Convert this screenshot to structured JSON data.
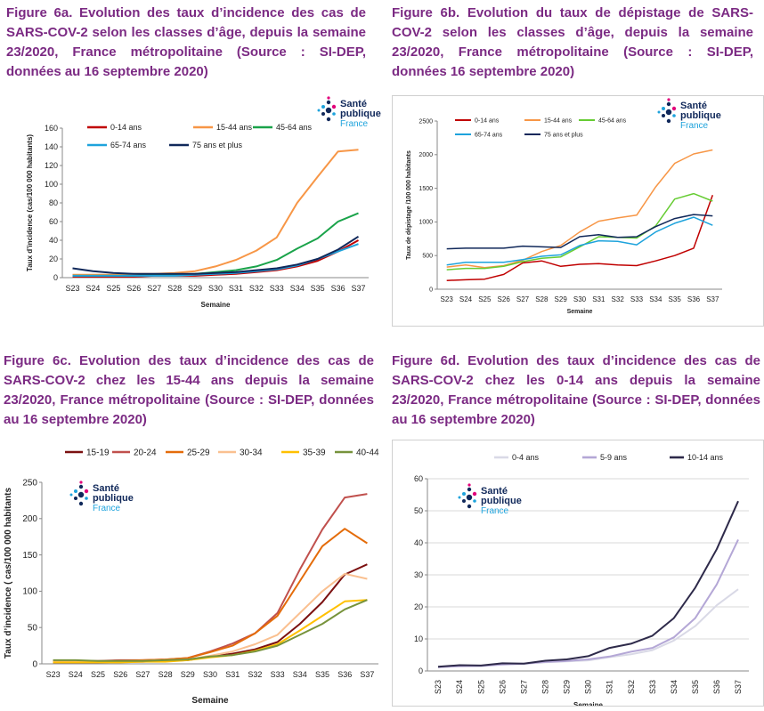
{
  "captions": {
    "fig6a": "Figure 6a. Evolution des taux d’incidence des cas de SARS-COV-2 selon les classes d’âge, depuis la semaine 23/2020, France métropolitaine (Source : SI-DEP, données au 16 septembre 2020)",
    "fig6b": "Figure 6b. Evolution du taux de dépistage de SARS-COV-2 selon les classes d’âge, depuis la semaine 23/2020, France métropolitaine (Source : SI-DEP, données 16 septembre 2020)",
    "fig6c": "Figure 6c. Evolution des taux d’incidence des cas de SARS-COV-2 chez les 15-44 ans depuis la semaine 23/2020, France métropolitaine (Source : SI-DEP, données au 16 septembre 2020)",
    "fig6d": "Figure 6d. Evolution des taux d’incidence des cas de SARS-COV-2 chez les 0-14 ans depuis la semaine 23/2020, France métropolitaine (Source : SI-DEP, données au 16 septembre 2020)"
  },
  "logo": {
    "line1": "Santé",
    "line2": "publique",
    "line3": "France"
  },
  "chart_data": [
    {
      "id": "fig6a",
      "type": "line",
      "title": "",
      "xlabel": "Semaine",
      "ylabel": "Taux d’incidence (cas/100 000 habitants)",
      "ylim": [
        0,
        160
      ],
      "yticks": [
        0,
        20,
        40,
        60,
        80,
        100,
        120,
        140,
        160
      ],
      "categories": [
        "S23",
        "S24",
        "S25",
        "S26",
        "S27",
        "S28",
        "S29",
        "S30",
        "S31",
        "S32",
        "S33",
        "S34",
        "S35",
        "S36",
        "S37"
      ],
      "legend_position": "top",
      "series": [
        {
          "name": "0-14 ans",
          "color": "#c00000",
          "values": [
            1,
            1,
            1,
            1,
            2,
            2,
            2,
            3,
            4,
            6,
            8,
            12,
            18,
            28,
            40
          ]
        },
        {
          "name": "15-44 ans",
          "color": "#f79646",
          "values": [
            3,
            3,
            3,
            4,
            4,
            5,
            7,
            12,
            19,
            29,
            43,
            80,
            108,
            135,
            137
          ]
        },
        {
          "name": "45-64 ans",
          "color": "#1aa34a",
          "values": [
            2,
            2,
            2,
            2,
            3,
            3,
            4,
            6,
            8,
            12,
            19,
            31,
            42,
            60,
            69
          ]
        },
        {
          "name": "65-74 ans",
          "color": "#1ea3dc",
          "values": [
            2,
            2,
            2,
            2,
            2,
            2,
            3,
            4,
            5,
            7,
            9,
            13,
            20,
            28,
            36
          ]
        },
        {
          "name": "75 ans et plus",
          "color": "#10285a",
          "values": [
            10,
            7,
            5,
            4,
            4,
            4,
            4,
            5,
            6,
            8,
            10,
            14,
            20,
            30,
            44
          ]
        }
      ]
    },
    {
      "id": "fig6b",
      "type": "line",
      "title": "",
      "xlabel": "Semaine",
      "ylabel": "Taux de dépistage /100 000 habitants",
      "ylim": [
        0,
        2500
      ],
      "yticks": [
        0,
        500,
        1000,
        1500,
        2000,
        2500
      ],
      "categories": [
        "S23",
        "S24",
        "S25",
        "S26",
        "S27",
        "S28",
        "S29",
        "S30",
        "S31",
        "S32",
        "S33",
        "S34",
        "S35",
        "S36",
        "S37"
      ],
      "legend_position": "top",
      "series": [
        {
          "name": "0-14 ans",
          "color": "#c00000",
          "values": [
            130,
            140,
            150,
            220,
            390,
            420,
            340,
            370,
            380,
            360,
            350,
            420,
            500,
            610,
            1400
          ]
        },
        {
          "name": "15-44 ans",
          "color": "#f79646",
          "values": [
            330,
            360,
            320,
            350,
            430,
            560,
            650,
            850,
            1010,
            1060,
            1100,
            1520,
            1870,
            2010,
            2070
          ]
        },
        {
          "name": "45-64 ans",
          "color": "#66cc33",
          "values": [
            290,
            310,
            310,
            340,
            410,
            460,
            480,
            630,
            780,
            770,
            760,
            940,
            1340,
            1420,
            1310
          ]
        },
        {
          "name": "65-74 ans",
          "color": "#1ea3dc",
          "values": [
            360,
            400,
            400,
            400,
            440,
            490,
            510,
            650,
            720,
            710,
            660,
            850,
            980,
            1070,
            950
          ]
        },
        {
          "name": "75 ans et plus",
          "color": "#10285a",
          "values": [
            600,
            610,
            610,
            610,
            640,
            630,
            620,
            780,
            810,
            770,
            780,
            930,
            1050,
            1110,
            1090
          ]
        }
      ]
    },
    {
      "id": "fig6c",
      "type": "line",
      "title": "",
      "xlabel": "Semaine",
      "ylabel": "Taux d’incidence ( cas/100 000 habitants",
      "ylim": [
        0,
        250
      ],
      "yticks": [
        0,
        50,
        100,
        150,
        200,
        250
      ],
      "categories": [
        "S23",
        "S24",
        "S25",
        "S26",
        "S27",
        "S28",
        "S29",
        "S30",
        "S31",
        "S32",
        "S33",
        "S34",
        "S35",
        "S36",
        "S37"
      ],
      "legend_position": "top",
      "series": [
        {
          "name": "15-19",
          "color": "#7b1010",
          "values": [
            2,
            2,
            2,
            3,
            3,
            4,
            5,
            10,
            14,
            20,
            30,
            55,
            85,
            123,
            137
          ]
        },
        {
          "name": "20-24",
          "color": "#c0504d",
          "values": [
            4,
            4,
            4,
            5,
            5,
            6,
            8,
            17,
            28,
            42,
            70,
            130,
            185,
            229,
            234
          ]
        },
        {
          "name": "25-29",
          "color": "#e46c0a",
          "values": [
            3,
            3,
            3,
            4,
            5,
            6,
            8,
            16,
            25,
            42,
            66,
            114,
            162,
            186,
            166
          ]
        },
        {
          "name": "30-34",
          "color": "#fac090",
          "values": [
            3,
            3,
            3,
            3,
            4,
            5,
            6,
            11,
            17,
            27,
            40,
            70,
            100,
            124,
            117
          ]
        },
        {
          "name": "35-39",
          "color": "#ffc000",
          "values": [
            2,
            2,
            2,
            2,
            3,
            3,
            5,
            9,
            12,
            18,
            27,
            46,
            66,
            86,
            88
          ]
        },
        {
          "name": "40-44",
          "color": "#77933c",
          "values": [
            5,
            5,
            4,
            4,
            4,
            5,
            6,
            10,
            12,
            17,
            25,
            40,
            55,
            75,
            88
          ]
        }
      ]
    },
    {
      "id": "fig6d",
      "type": "line",
      "title": "",
      "xlabel": "Semaine",
      "ylabel": "",
      "ylim": [
        0,
        60
      ],
      "yticks": [
        0,
        10,
        20,
        30,
        40,
        50,
        60
      ],
      "categories": [
        "S23",
        "S24",
        "S25",
        "S26",
        "S27",
        "S28",
        "S29",
        "S30",
        "S31",
        "S32",
        "S33",
        "S34",
        "S35",
        "S36",
        "S37"
      ],
      "legend_position": "top",
      "series": [
        {
          "name": "0-4 ans",
          "color": "#d9d9e6",
          "values": [
            1.2,
            1.5,
            1.5,
            2.0,
            2.2,
            2.7,
            3.0,
            3.3,
            4.3,
            5.2,
            6.5,
            9.5,
            14,
            20.5,
            25.5
          ]
        },
        {
          "name": "5-9 ans",
          "color": "#b4a7d6",
          "values": [
            1.2,
            1.5,
            1.6,
            2.0,
            2.3,
            2.8,
            3.1,
            3.6,
            4.5,
            6.0,
            7.2,
            10.5,
            16.5,
            27,
            41
          ]
        },
        {
          "name": "10-14 ans",
          "color": "#2e2a4a",
          "values": [
            1.3,
            1.8,
            1.7,
            2.4,
            2.3,
            3.2,
            3.6,
            4.6,
            7.2,
            8.5,
            11,
            16.5,
            26,
            38,
            53
          ]
        }
      ]
    }
  ]
}
